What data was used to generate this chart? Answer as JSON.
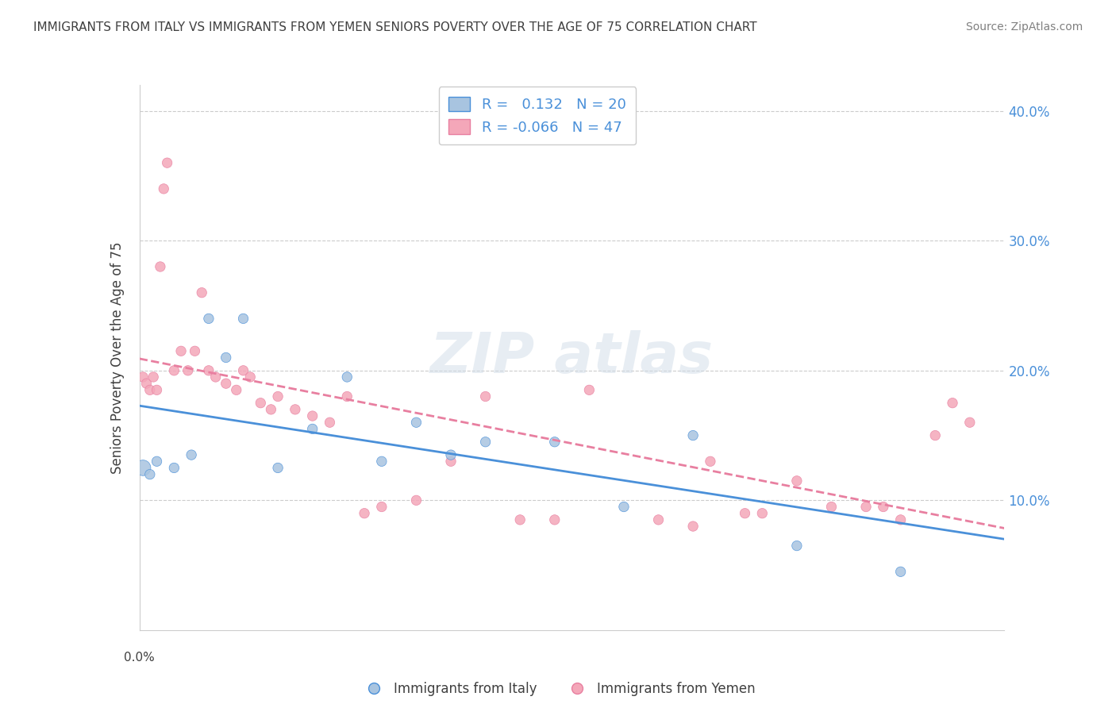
{
  "title": "IMMIGRANTS FROM ITALY VS IMMIGRANTS FROM YEMEN SENIORS POVERTY OVER THE AGE OF 75 CORRELATION CHART",
  "source": "Source: ZipAtlas.com",
  "ylabel": "Seniors Poverty Over the Age of 75",
  "xlim": [
    0.0,
    0.25
  ],
  "ylim": [
    0.0,
    0.42
  ],
  "ytick_vals": [
    0.1,
    0.2,
    0.3,
    0.4
  ],
  "ytick_labels": [
    "10.0%",
    "20.0%",
    "30.0%",
    "40.0%"
  ],
  "legend_labels": [
    "Immigrants from Italy",
    "Immigrants from Yemen"
  ],
  "italy_color": "#a8c4e0",
  "yemen_color": "#f4a7b9",
  "italy_line_color": "#4a90d9",
  "yemen_line_color": "#e87fa0",
  "italy_R": 0.132,
  "italy_N": 20,
  "yemen_R": -0.066,
  "yemen_N": 47,
  "italy_scatter_x": [
    0.001,
    0.003,
    0.005,
    0.01,
    0.015,
    0.02,
    0.025,
    0.03,
    0.04,
    0.05,
    0.06,
    0.07,
    0.08,
    0.09,
    0.1,
    0.12,
    0.14,
    0.16,
    0.19,
    0.22
  ],
  "italy_scatter_y": [
    0.125,
    0.12,
    0.13,
    0.125,
    0.135,
    0.24,
    0.21,
    0.24,
    0.125,
    0.155,
    0.195,
    0.13,
    0.16,
    0.135,
    0.145,
    0.145,
    0.095,
    0.15,
    0.065,
    0.045
  ],
  "italy_scatter_size": [
    200,
    80,
    80,
    80,
    80,
    80,
    80,
    80,
    80,
    80,
    80,
    80,
    80,
    80,
    80,
    80,
    80,
    80,
    80,
    80
  ],
  "yemen_scatter_x": [
    0.001,
    0.002,
    0.003,
    0.004,
    0.005,
    0.006,
    0.007,
    0.008,
    0.01,
    0.012,
    0.014,
    0.016,
    0.018,
    0.02,
    0.022,
    0.025,
    0.028,
    0.03,
    0.032,
    0.035,
    0.038,
    0.04,
    0.045,
    0.05,
    0.055,
    0.06,
    0.065,
    0.07,
    0.08,
    0.09,
    0.1,
    0.11,
    0.12,
    0.13,
    0.15,
    0.16,
    0.165,
    0.175,
    0.18,
    0.19,
    0.2,
    0.21,
    0.215,
    0.22,
    0.23,
    0.235,
    0.24
  ],
  "yemen_scatter_y": [
    0.195,
    0.19,
    0.185,
    0.195,
    0.185,
    0.28,
    0.34,
    0.36,
    0.2,
    0.215,
    0.2,
    0.215,
    0.26,
    0.2,
    0.195,
    0.19,
    0.185,
    0.2,
    0.195,
    0.175,
    0.17,
    0.18,
    0.17,
    0.165,
    0.16,
    0.18,
    0.09,
    0.095,
    0.1,
    0.13,
    0.18,
    0.085,
    0.085,
    0.185,
    0.085,
    0.08,
    0.13,
    0.09,
    0.09,
    0.115,
    0.095,
    0.095,
    0.095,
    0.085,
    0.15,
    0.175,
    0.16
  ],
  "yemen_scatter_size": [
    80,
    80,
    80,
    80,
    80,
    80,
    80,
    80,
    80,
    80,
    80,
    80,
    80,
    80,
    80,
    80,
    80,
    80,
    80,
    80,
    80,
    80,
    80,
    80,
    80,
    80,
    80,
    80,
    80,
    80,
    80,
    80,
    80,
    80,
    80,
    80,
    80,
    80,
    80,
    80,
    80,
    80,
    80,
    80,
    80,
    80,
    80
  ],
  "background_color": "#ffffff",
  "grid_color": "#cccccc",
  "title_color": "#404040",
  "source_color": "#808080",
  "watermark_color": "#d0dce8",
  "watermark_alpha": 0.5
}
